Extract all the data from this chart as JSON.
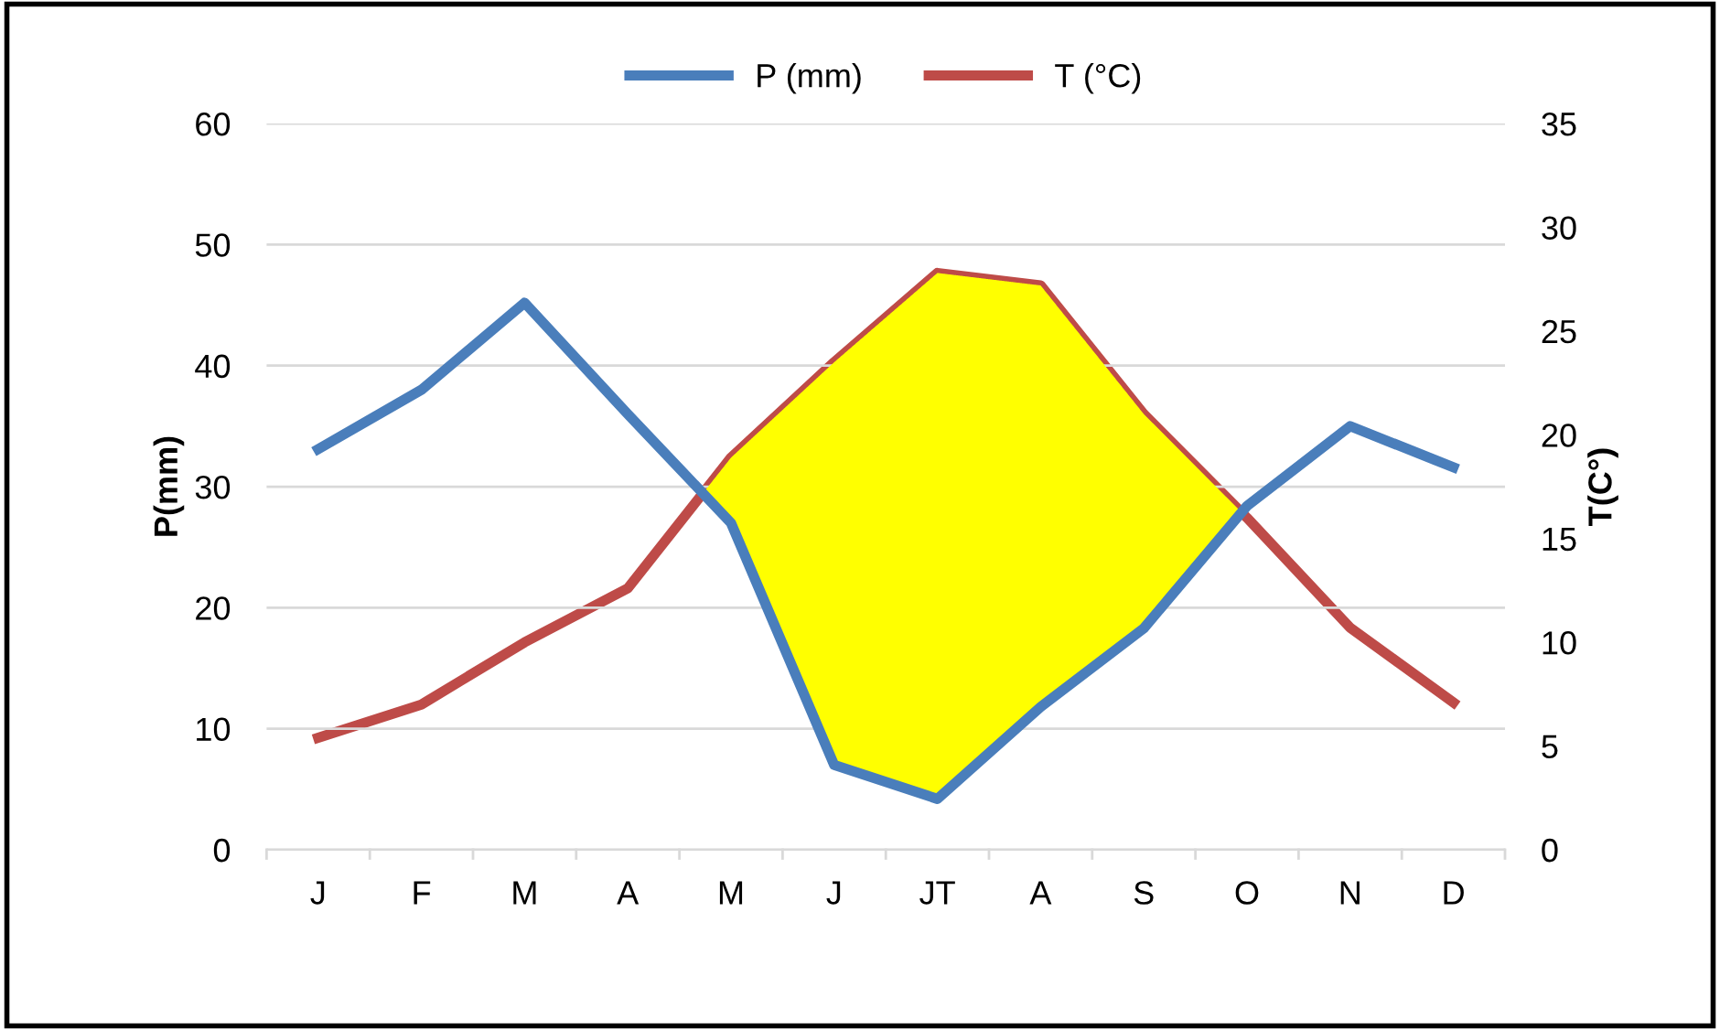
{
  "chart_data": {
    "type": "line",
    "categories": [
      "J",
      "F",
      "M",
      "A",
      "M",
      "J",
      "JT",
      "A",
      "S",
      "O",
      "N",
      "D"
    ],
    "ylabel": "P(mm)",
    "y2label": "T(C°)",
    "series": [
      {
        "name": "P (mm)",
        "color": "#4a7ebb",
        "values": [
          33.1,
          38,
          45.2,
          36,
          27,
          7,
          4.2,
          11.8,
          18.3,
          28.4,
          35,
          31.6
        ]
      },
      {
        "name": "T (°C)",
        "color": "#be4b48",
        "axis": "y2",
        "values": [
          5.4,
          7,
          10,
          12.6,
          18.9,
          23.5,
          27.8,
          27.2,
          21,
          16,
          10.7,
          7.1
        ]
      }
    ],
    "ylim": [
      0,
      60
    ],
    "yticks": [
      0,
      10,
      20,
      30,
      40,
      50,
      60
    ],
    "y2lim": [
      0,
      35
    ],
    "y2ticks": [
      0,
      5,
      10,
      15,
      20,
      25,
      30,
      35
    ],
    "grid": "y",
    "legend": "top"
  }
}
